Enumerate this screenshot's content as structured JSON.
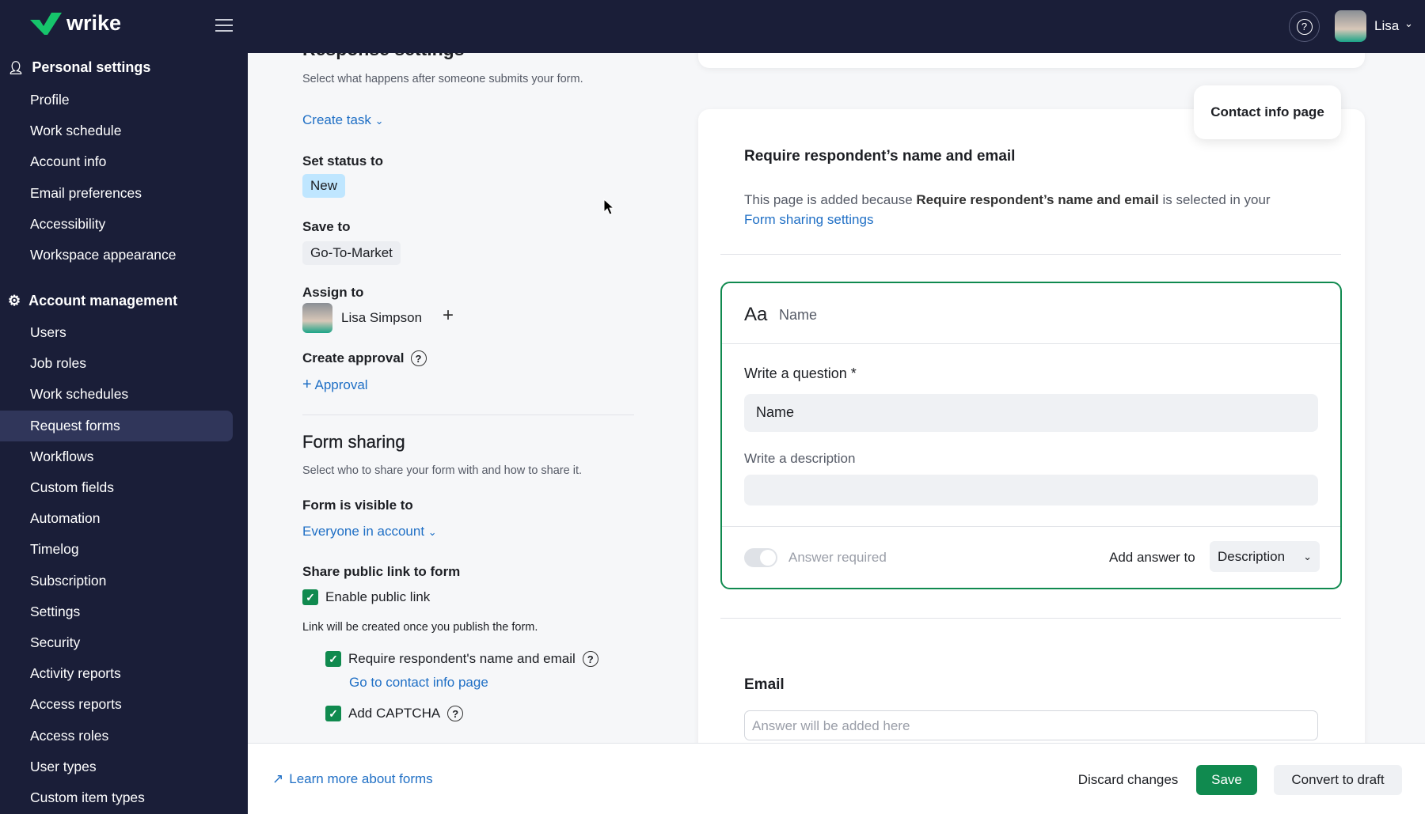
{
  "topbar": {
    "logo": "wrike",
    "user_name": "Lisa"
  },
  "sidebar": {
    "personal_header": "Personal settings",
    "personal_items": [
      "Profile",
      "Work schedule",
      "Account info",
      "Email preferences",
      "Accessibility",
      "Workspace appearance"
    ],
    "account_header": "Account management",
    "account_items": [
      "Users",
      "Job roles",
      "Work schedules",
      "Request forms",
      "Workflows",
      "Custom fields",
      "Automation",
      "Timelog",
      "Subscription",
      "Settings",
      "Security",
      "Activity reports",
      "Access reports",
      "Access roles",
      "User types",
      "Custom item types"
    ],
    "active": "Request forms"
  },
  "response": {
    "title": "Response settings",
    "subtitle": "Select what happens after someone submits your form.",
    "action": "Create task",
    "status_label": "Set status to",
    "status_value": "New",
    "save_label": "Save to",
    "save_value": "Go-To-Market",
    "assign_label": "Assign to",
    "assignee": "Lisa Simpson",
    "approval_label": "Create approval",
    "approval_add": "Approval"
  },
  "sharing": {
    "title": "Form sharing",
    "subtitle": "Select who to share your form with and how to share it.",
    "visible_label": "Form is visible to",
    "visible_value": "Everyone in account",
    "public_label": "Share public link to form",
    "enable_public": "Enable public link",
    "enable_checked": true,
    "link_note": "Link will be created once you publish the form.",
    "require_name": "Require respondent's name and email",
    "require_checked": true,
    "go_contact": "Go to contact info page",
    "captcha": "Add CAPTCHA",
    "captcha_checked": true
  },
  "preview": {
    "tab": "Contact info page",
    "heading": "Require respondent’s name and email",
    "para_pre": "This page is added because ",
    "para_bold": "Require respondent’s name and email",
    "para_post": " is selected in your",
    "para_link": "Form sharing settings",
    "field_type": "Name",
    "question_label": "Write a question *",
    "question_value": "Name",
    "desc_label": "Write a description",
    "desc_value": "",
    "answer_required": "Answer required",
    "add_answer_to": "Add answer to",
    "add_answer_value": "Description",
    "email_label": "Email",
    "email_placeholder": "Answer will be added here"
  },
  "footer": {
    "learn_more": "Learn more about forms",
    "discard": "Discard changes",
    "save": "Save",
    "convert": "Convert to draft"
  },
  "colors": {
    "nav": "#1a1e38",
    "accent_green": "#108a4f",
    "link": "#1f6fc5",
    "badge": "#bfe6ff"
  }
}
